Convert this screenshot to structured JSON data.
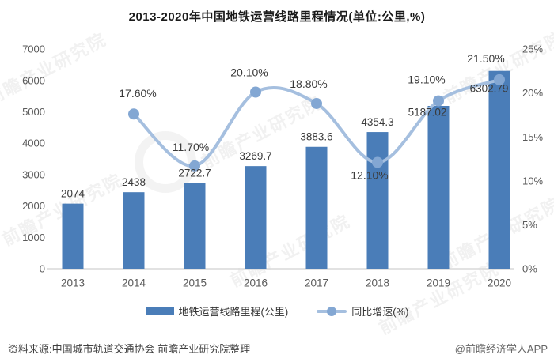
{
  "title": "2013-2020年中国地铁运营线路里程情况(单位:公里,%)",
  "watermark": {
    "text": "前瞻产业研究院"
  },
  "legend": {
    "items": [
      {
        "label": "地铁运营线路里程(公里)"
      },
      {
        "label": "同比增速(%)"
      }
    ]
  },
  "footer": {
    "source": "资料来源:中国城市轨道交通协会 前瞻产业研究院整理",
    "credit": "@前瞻经济学人APP"
  },
  "colors": {
    "bar": "#4a7db8",
    "line": "#a5bfdf",
    "marker": "#83a7d3",
    "axis_text": "#595959",
    "label_text": "#3a3a3a",
    "baseline": "#d9d9d9"
  },
  "chart_data": {
    "type": "combo",
    "categories": [
      "2013",
      "2014",
      "2015",
      "2016",
      "2017",
      "2018",
      "2019",
      "2020"
    ],
    "series": [
      {
        "name": "地铁运营线路里程(公里)",
        "type": "bar",
        "axis": "left",
        "values": [
          2074,
          2438,
          2722.7,
          3269.7,
          3883.6,
          4354.3,
          5187.02,
          6302.79
        ],
        "labels": [
          "2074",
          "2438",
          "2722.7",
          "3269.7",
          "3883.6",
          "4354.3",
          "5187.02",
          "6302.79"
        ]
      },
      {
        "name": "同比增速(%)",
        "type": "line",
        "axis": "right",
        "values": [
          null,
          17.6,
          11.7,
          20.1,
          18.8,
          12.1,
          19.1,
          21.5
        ],
        "labels": [
          null,
          "17.60%",
          "11.70%",
          "20.10%",
          "18.80%",
          "12.10%",
          "19.10%",
          "21.50%"
        ]
      }
    ],
    "left_axis": {
      "min": 0,
      "max": 7000,
      "step": 1000,
      "ticks": [
        "0",
        "1000",
        "2000",
        "3000",
        "4000",
        "5000",
        "6000",
        "7000"
      ]
    },
    "right_axis": {
      "min": 0,
      "max": 25,
      "step": 5,
      "ticks": [
        "0%",
        "5%",
        "10%",
        "15%",
        "20%",
        "25%"
      ]
    },
    "grid": false,
    "smooth_line": true,
    "legend_position": "bottom"
  }
}
